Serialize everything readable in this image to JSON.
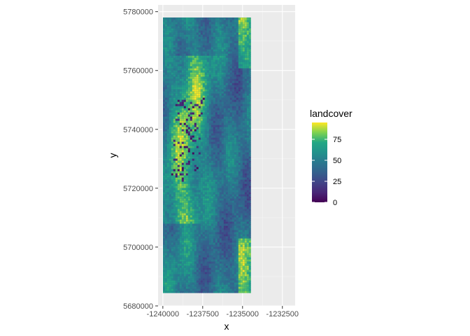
{
  "chart_data": {
    "type": "heatmap",
    "title": "",
    "xlabel": "x",
    "ylabel": "y",
    "x_ticks": [
      -1240000,
      -1237500,
      -1235000,
      -1232500
    ],
    "x_tick_labels": [
      "-1240000",
      "-1237500",
      "-1235000",
      "-1232500"
    ],
    "y_ticks": [
      5680000,
      5700000,
      5720000,
      5740000,
      5760000,
      5780000
    ],
    "y_tick_labels": [
      "5680000",
      "5700000",
      "5720000",
      "5740000",
      "5760000",
      "5780000"
    ],
    "xlim": [
      -1240300,
      -1231700
    ],
    "ylim": [
      5680000,
      5782300
    ],
    "raster_extent": {
      "x": [
        -1240000,
        -1234500
      ],
      "y": [
        5684500,
        5780000
      ]
    },
    "fill_scale": {
      "name": "landcover",
      "palette": "viridis",
      "limits": [
        0,
        95
      ],
      "breaks": [
        0,
        25,
        50,
        75
      ],
      "break_labels": [
        "0",
        "25",
        "50",
        "75"
      ]
    },
    "grid": true,
    "legend_position": "right",
    "colors": {
      "panel_background": "#ebebeb",
      "grid_major": "#ffffff",
      "grid_minor": "#f5f5f5",
      "viridis_low": "#440154",
      "viridis_mid": "#21908c",
      "viridis_high": "#fde725"
    }
  }
}
